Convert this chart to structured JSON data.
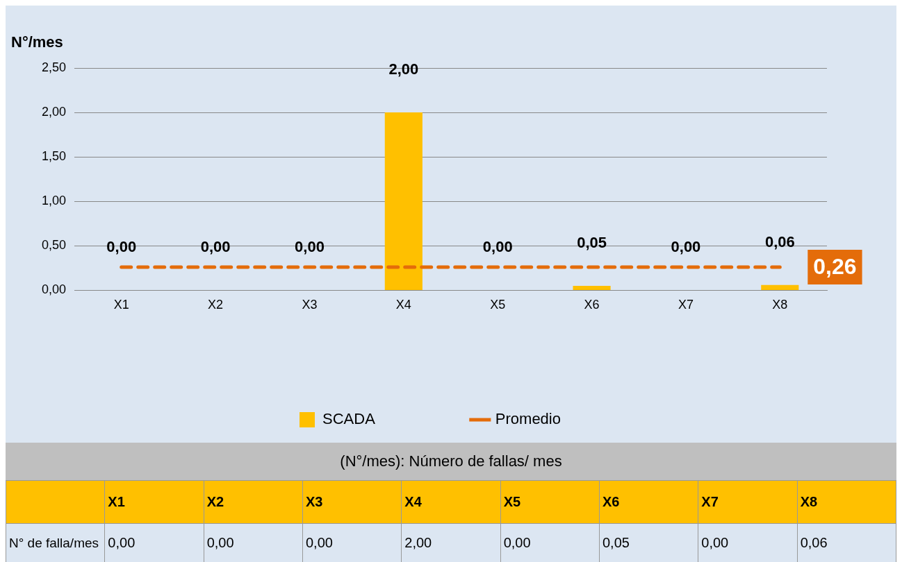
{
  "chart_data": {
    "type": "bar",
    "ylabel": "N°/mes",
    "categories": [
      "X1",
      "X2",
      "X3",
      "X4",
      "X5",
      "X6",
      "X7",
      "X8"
    ],
    "series": [
      {
        "name": "SCADA",
        "color": "#ffc000",
        "values": [
          0,
          0,
          0,
          2,
          0,
          0.05,
          0,
          0.06
        ],
        "value_labels": [
          "0,00",
          "0,00",
          "0,00",
          "2,00",
          "0,00",
          "0,05",
          "0,00",
          "0,06"
        ]
      },
      {
        "name": "Promedio",
        "type": "line",
        "color": "#e46c0a",
        "values": [
          0.26,
          0.26,
          0.26,
          0.26,
          0.26,
          0.26,
          0.26,
          0.26
        ],
        "value_labels": [
          null,
          null,
          null,
          null,
          null,
          null,
          null,
          "0,26"
        ],
        "marker": "none",
        "line_style": "dashed"
      }
    ],
    "ylim": [
      0,
      2.5
    ],
    "yticks": [
      {
        "value": 0,
        "label": "0,00"
      },
      {
        "value": 0.5,
        "label": "0,50"
      },
      {
        "value": 1,
        "label": "1,00"
      },
      {
        "value": 1.5,
        "label": "1,50"
      },
      {
        "value": 2,
        "label": "2,00"
      },
      {
        "value": 2.5,
        "label": "2,50"
      }
    ],
    "grid": "y",
    "legend": "bottom",
    "annotations": [
      "(N°/mes): Número de fallas/ mes",
      "N° de falla/mes"
    ]
  }
}
